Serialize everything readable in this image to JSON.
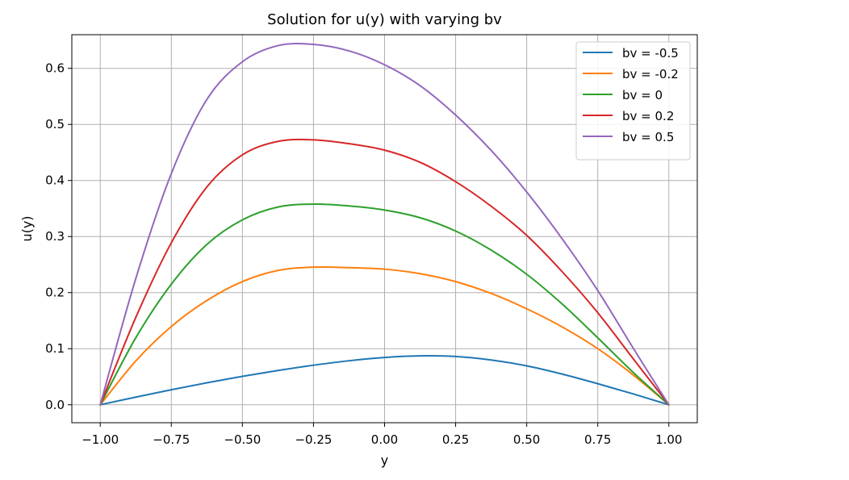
{
  "chart_data": {
    "type": "line",
    "title": "Solution for u(y) with varying bv",
    "xlabel": "y",
    "ylabel": "u(y)",
    "xlim": [
      -1.1,
      1.1
    ],
    "ylim": [
      -0.032,
      0.66
    ],
    "xticks": [
      -1.0,
      -0.75,
      -0.5,
      -0.25,
      0.0,
      0.25,
      0.5,
      0.75,
      1.0
    ],
    "xtick_labels": [
      "−1.00",
      "−0.75",
      "−0.50",
      "−0.25",
      "0.00",
      "0.25",
      "0.50",
      "0.75",
      "1.00"
    ],
    "yticks": [
      0.0,
      0.1,
      0.2,
      0.3,
      0.4,
      0.5,
      0.6
    ],
    "ytick_labels": [
      "0.0",
      "0.1",
      "0.2",
      "0.3",
      "0.4",
      "0.5",
      "0.6"
    ],
    "grid": true,
    "legend_position": "top-right",
    "x": [
      -1.0,
      -0.875,
      -0.75,
      -0.625,
      -0.5,
      -0.375,
      -0.25,
      -0.125,
      0.0,
      0.125,
      0.25,
      0.375,
      0.5,
      0.625,
      0.75,
      0.875,
      1.0
    ],
    "series": [
      {
        "name": "bv = -0.5",
        "color": "#1f77b4",
        "values": [
          0.0,
          0.0137,
          0.0268,
          0.0392,
          0.0507,
          0.0612,
          0.0706,
          0.0785,
          0.0843,
          0.0872,
          0.0862,
          0.0799,
          0.0694,
          0.0547,
          0.0376,
          0.0193,
          0.0
        ]
      },
      {
        "name": "bv = -0.2",
        "color": "#ff7f0e",
        "values": [
          0.0,
          0.0782,
          0.1395,
          0.186,
          0.2197,
          0.2395,
          0.2455,
          0.2445,
          0.2418,
          0.2338,
          0.2196,
          0.1986,
          0.1712,
          0.1389,
          0.1001,
          0.053,
          0.0
        ]
      },
      {
        "name": "bv = 0",
        "color": "#2ca02c",
        "values": [
          0.0,
          0.1195,
          0.2151,
          0.2859,
          0.3298,
          0.3527,
          0.3578,
          0.3546,
          0.3473,
          0.3336,
          0.3099,
          0.2759,
          0.2327,
          0.1796,
          0.1194,
          0.0575,
          0.0
        ]
      },
      {
        "name": "bv = 0.2",
        "color": "#d62728",
        "values": [
          0.0,
          0.1558,
          0.2889,
          0.3884,
          0.4457,
          0.4698,
          0.4725,
          0.4656,
          0.4541,
          0.4324,
          0.3979,
          0.3541,
          0.3021,
          0.2372,
          0.1642,
          0.0818,
          0.0
        ]
      },
      {
        "name": "bv = 0.5",
        "color": "#9467bd",
        "values": [
          0.0,
          0.2251,
          0.4124,
          0.5445,
          0.6118,
          0.6405,
          0.6427,
          0.6311,
          0.6064,
          0.5691,
          0.5167,
          0.4536,
          0.3795,
          0.2958,
          0.2037,
          0.1007,
          0.0
        ]
      }
    ]
  }
}
